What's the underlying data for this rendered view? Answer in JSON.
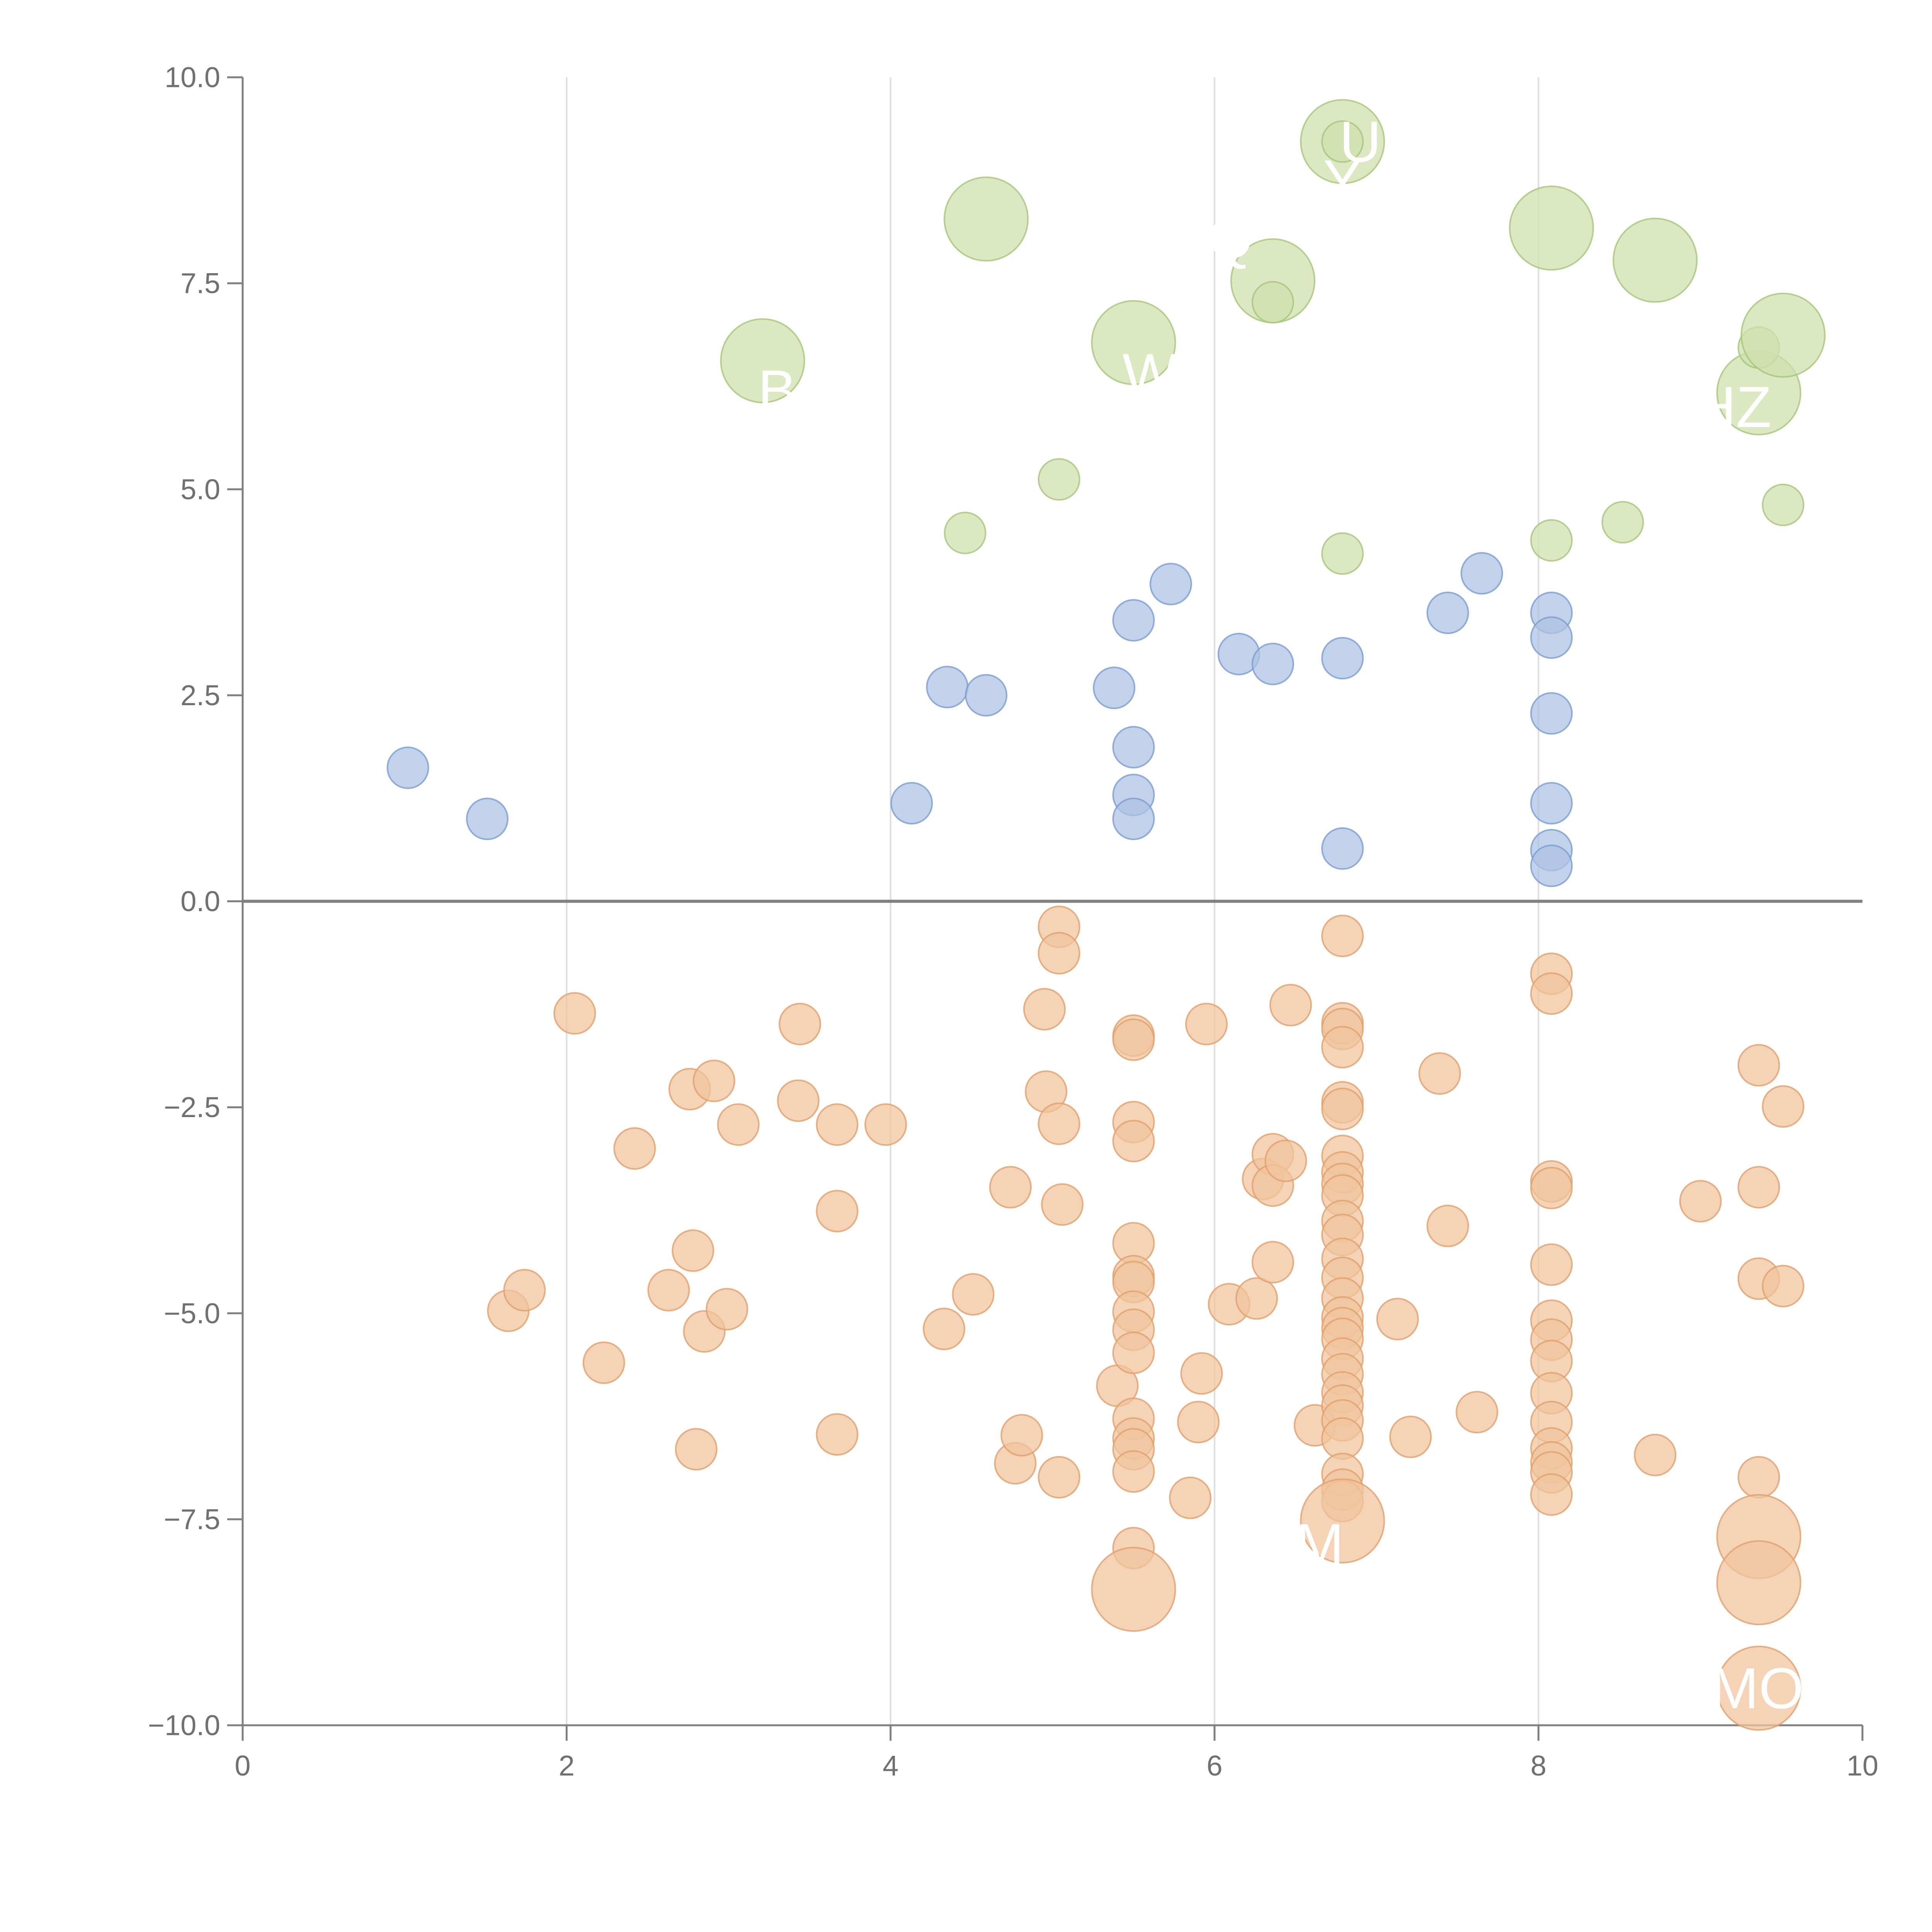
{
  "chart_data": {
    "type": "scatter",
    "title": "",
    "xlabel": "",
    "ylabel": "",
    "xlim": [
      0,
      10
    ],
    "ylim": [
      -10,
      10
    ],
    "x_ticks": [
      "0",
      "2",
      "4",
      "6",
      "8",
      "10"
    ],
    "y_ticks": [
      "10.0",
      "7.5",
      "5.0",
      "2.5",
      "0.0",
      "−2.5",
      "−5.0",
      "−7.5",
      "−10.0"
    ],
    "grid": "vertical",
    "reference_line": 0,
    "legend": "none",
    "series": [
      {
        "color": "#aec3e3",
        "stroke": "#7a9ccf",
        "points": [
          {
            "x": 1.02,
            "y": 1.62
          },
          {
            "x": 1.51,
            "y": 1.0
          },
          {
            "x": 4.13,
            "y": 1.19
          },
          {
            "x": 4.35,
            "y": 2.6
          },
          {
            "x": 4.59,
            "y": 2.5
          },
          {
            "x": 5.38,
            "y": 2.59
          },
          {
            "x": 5.5,
            "y": 3.41
          },
          {
            "x": 5.5,
            "y": 1.87
          },
          {
            "x": 5.5,
            "y": 1.29
          },
          {
            "x": 5.5,
            "y": 1.0
          },
          {
            "x": 5.73,
            "y": 3.85
          },
          {
            "x": 6.15,
            "y": 3.0
          },
          {
            "x": 6.36,
            "y": 2.88
          },
          {
            "x": 6.79,
            "y": 2.95
          },
          {
            "x": 6.79,
            "y": 0.64
          },
          {
            "x": 7.44,
            "y": 3.5
          },
          {
            "x": 7.65,
            "y": 3.98
          },
          {
            "x": 8.08,
            "y": 3.5
          },
          {
            "x": 8.08,
            "y": 3.2
          },
          {
            "x": 8.08,
            "y": 2.28
          },
          {
            "x": 8.08,
            "y": 1.19
          },
          {
            "x": 8.08,
            "y": 0.62
          },
          {
            "x": 8.08,
            "y": 0.43
          }
        ]
      },
      {
        "color": "#cfe0ae",
        "stroke": "#a7c47a",
        "points": [
          {
            "x": 3.21,
            "y": 6.56,
            "size": 3
          },
          {
            "x": 4.46,
            "y": 4.47
          },
          {
            "x": 4.59,
            "y": 8.28,
            "size": 3
          },
          {
            "x": 5.04,
            "y": 5.12
          },
          {
            "x": 5.5,
            "y": 6.78,
            "size": 3
          },
          {
            "x": 6.36,
            "y": 7.53,
            "size": 3
          },
          {
            "x": 6.36,
            "y": 7.27
          },
          {
            "x": 6.79,
            "y": 9.22,
            "size": 3
          },
          {
            "x": 6.79,
            "y": 9.22
          },
          {
            "x": 6.79,
            "y": 4.22
          },
          {
            "x": 8.08,
            "y": 8.17,
            "size": 3
          },
          {
            "x": 8.08,
            "y": 4.38
          },
          {
            "x": 8.52,
            "y": 4.6
          },
          {
            "x": 8.72,
            "y": 7.78,
            "size": 3
          },
          {
            "x": 9.36,
            "y": 6.17,
            "size": 3
          },
          {
            "x": 9.36,
            "y": 6.72
          },
          {
            "x": 9.51,
            "y": 6.87,
            "size": 3
          },
          {
            "x": 9.51,
            "y": 4.81
          }
        ]
      },
      {
        "color": "#f0c49e",
        "stroke": "#e0a06a",
        "points": [
          {
            "x": 1.64,
            "y": -4.97
          },
          {
            "x": 1.74,
            "y": -4.72
          },
          {
            "x": 2.05,
            "y": -1.36
          },
          {
            "x": 2.23,
            "y": -5.6
          },
          {
            "x": 2.42,
            "y": -3.0
          },
          {
            "x": 2.63,
            "y": -4.72
          },
          {
            "x": 2.76,
            "y": -2.28
          },
          {
            "x": 2.78,
            "y": -4.24
          },
          {
            "x": 2.8,
            "y": -6.65
          },
          {
            "x": 2.85,
            "y": -5.22
          },
          {
            "x": 2.91,
            "y": -2.18
          },
          {
            "x": 2.99,
            "y": -4.95
          },
          {
            "x": 3.06,
            "y": -2.71
          },
          {
            "x": 3.43,
            "y": -2.42
          },
          {
            "x": 3.44,
            "y": -1.49
          },
          {
            "x": 3.67,
            "y": -2.71
          },
          {
            "x": 3.67,
            "y": -3.76
          },
          {
            "x": 3.67,
            "y": -6.47
          },
          {
            "x": 3.97,
            "y": -2.71
          },
          {
            "x": 4.33,
            "y": -5.19
          },
          {
            "x": 4.51,
            "y": -4.77
          },
          {
            "x": 4.74,
            "y": -3.47
          },
          {
            "x": 4.77,
            "y": -6.82
          },
          {
            "x": 4.81,
            "y": -6.48
          },
          {
            "x": 4.95,
            "y": -1.31
          },
          {
            "x": 4.96,
            "y": -2.31
          },
          {
            "x": 5.04,
            "y": -0.31
          },
          {
            "x": 5.04,
            "y": -0.63
          },
          {
            "x": 5.04,
            "y": -2.7
          },
          {
            "x": 5.04,
            "y": -6.99
          },
          {
            "x": 5.06,
            "y": -3.68
          },
          {
            "x": 5.4,
            "y": -5.88
          },
          {
            "x": 5.5,
            "y": -1.63
          },
          {
            "x": 5.5,
            "y": -1.68
          },
          {
            "x": 5.5,
            "y": -2.68
          },
          {
            "x": 5.5,
            "y": -2.91
          },
          {
            "x": 5.5,
            "y": -4.15
          },
          {
            "x": 5.5,
            "y": -4.55
          },
          {
            "x": 5.5,
            "y": -4.62
          },
          {
            "x": 5.5,
            "y": -4.98
          },
          {
            "x": 5.5,
            "y": -5.2
          },
          {
            "x": 5.5,
            "y": -5.48
          },
          {
            "x": 5.5,
            "y": -6.28
          },
          {
            "x": 5.5,
            "y": -6.52
          },
          {
            "x": 5.5,
            "y": -6.65
          },
          {
            "x": 5.5,
            "y": -6.92
          },
          {
            "x": 5.5,
            "y": -7.85
          },
          {
            "x": 5.5,
            "y": -8.35,
            "size": 3
          },
          {
            "x": 5.85,
            "y": -7.24
          },
          {
            "x": 5.9,
            "y": -6.32
          },
          {
            "x": 5.92,
            "y": -5.73
          },
          {
            "x": 5.95,
            "y": -1.49
          },
          {
            "x": 6.09,
            "y": -4.89
          },
          {
            "x": 6.26,
            "y": -4.82
          },
          {
            "x": 6.3,
            "y": -3.37
          },
          {
            "x": 6.36,
            "y": -3.07
          },
          {
            "x": 6.36,
            "y": -3.45
          },
          {
            "x": 6.36,
            "y": -4.38
          },
          {
            "x": 6.44,
            "y": -3.15
          },
          {
            "x": 6.47,
            "y": -1.26
          },
          {
            "x": 6.62,
            "y": -6.36
          },
          {
            "x": 6.79,
            "y": -0.42
          },
          {
            "x": 6.79,
            "y": -1.48
          },
          {
            "x": 6.79,
            "y": -1.55
          },
          {
            "x": 6.79,
            "y": -1.77
          },
          {
            "x": 6.79,
            "y": -2.44
          },
          {
            "x": 6.79,
            "y": -2.52
          },
          {
            "x": 6.79,
            "y": -3.09
          },
          {
            "x": 6.79,
            "y": -3.29
          },
          {
            "x": 6.79,
            "y": -3.43
          },
          {
            "x": 6.79,
            "y": -3.57
          },
          {
            "x": 6.79,
            "y": -3.88
          },
          {
            "x": 6.79,
            "y": -4.05
          },
          {
            "x": 6.79,
            "y": -4.34
          },
          {
            "x": 6.79,
            "y": -4.57
          },
          {
            "x": 6.79,
            "y": -4.82
          },
          {
            "x": 6.79,
            "y": -5.05
          },
          {
            "x": 6.79,
            "y": -5.18
          },
          {
            "x": 6.79,
            "y": -5.31
          },
          {
            "x": 6.79,
            "y": -5.55
          },
          {
            "x": 6.79,
            "y": -5.74
          },
          {
            "x": 6.79,
            "y": -5.96
          },
          {
            "x": 6.79,
            "y": -6.12
          },
          {
            "x": 6.79,
            "y": -6.3
          },
          {
            "x": 6.79,
            "y": -6.52
          },
          {
            "x": 6.79,
            "y": -6.95
          },
          {
            "x": 6.79,
            "y": -7.14
          },
          {
            "x": 6.79,
            "y": -7.28
          },
          {
            "x": 6.79,
            "y": -7.52,
            "size": 3
          },
          {
            "x": 7.13,
            "y": -5.07
          },
          {
            "x": 7.21,
            "y": -6.5
          },
          {
            "x": 7.39,
            "y": -2.09
          },
          {
            "x": 7.44,
            "y": -3.94
          },
          {
            "x": 7.62,
            "y": -6.2
          },
          {
            "x": 8.08,
            "y": -0.88
          },
          {
            "x": 8.08,
            "y": -1.12
          },
          {
            "x": 8.08,
            "y": -3.4
          },
          {
            "x": 8.08,
            "y": -3.48
          },
          {
            "x": 8.08,
            "y": -4.41
          },
          {
            "x": 8.08,
            "y": -5.09
          },
          {
            "x": 8.08,
            "y": -5.32
          },
          {
            "x": 8.08,
            "y": -5.58
          },
          {
            "x": 8.08,
            "y": -5.97
          },
          {
            "x": 8.08,
            "y": -6.32
          },
          {
            "x": 8.08,
            "y": -6.64
          },
          {
            "x": 8.08,
            "y": -6.81
          },
          {
            "x": 8.08,
            "y": -6.93
          },
          {
            "x": 8.08,
            "y": -7.2
          },
          {
            "x": 8.72,
            "y": -6.72
          },
          {
            "x": 9.0,
            "y": -3.64
          },
          {
            "x": 9.36,
            "y": -1.99
          },
          {
            "x": 9.36,
            "y": -3.47
          },
          {
            "x": 9.36,
            "y": -4.58
          },
          {
            "x": 9.36,
            "y": -6.99
          },
          {
            "x": 9.36,
            "y": -7.71,
            "size": 3
          },
          {
            "x": 9.36,
            "y": -8.27,
            "size": 3
          },
          {
            "x": 9.36,
            "y": -9.55,
            "size": 3
          },
          {
            "x": 9.51,
            "y": -2.49
          },
          {
            "x": 9.51,
            "y": -4.67
          }
        ]
      }
    ],
    "annotations": [
      {
        "text": "U",
        "x": 6.9,
        "y": 9.22
      },
      {
        "text": "Y",
        "x": 6.79,
        "y": 8.75
      },
      {
        "text": "Q",
        "x": 6.1,
        "y": 8.05
      },
      {
        "text": "W",
        "x": 5.6,
        "y": 6.4
      },
      {
        "text": "B",
        "x": 3.3,
        "y": 6.2
      },
      {
        "text": "HZ",
        "x": 9.2,
        "y": 6.0
      },
      {
        "text": "M",
        "x": 6.65,
        "y": -7.8
      },
      {
        "text": "MO",
        "x": 9.35,
        "y": -9.55
      }
    ]
  }
}
